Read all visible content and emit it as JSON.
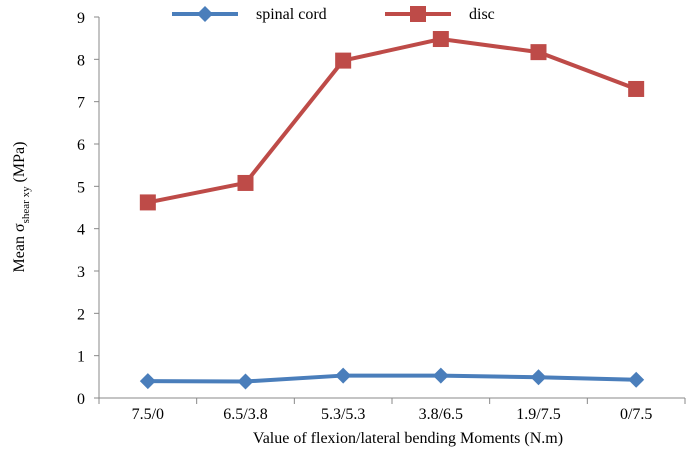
{
  "chart_data": {
    "type": "line",
    "x_label": "Value of flexion/lateral bending Moments (N.m)",
    "y_label": {
      "main": "Mean σ",
      "sub": "shear xy",
      "unit": "(MPa)"
    },
    "categories": [
      "7.5/0",
      "6.5/3.8",
      "5.3/5.3",
      "3.8/6.5",
      "1.9/7.5",
      "0/7.5"
    ],
    "series": [
      {
        "name": "spinal cord",
        "color": "#4a7ebb",
        "marker": "diamond",
        "values": [
          0.4,
          0.39,
          0.53,
          0.53,
          0.49,
          0.43
        ]
      },
      {
        "name": "disc",
        "color": "#be4b48",
        "marker": "square",
        "values": [
          4.62,
          5.08,
          7.97,
          8.48,
          8.17,
          7.3
        ]
      }
    ],
    "ylim": [
      0,
      9
    ],
    "yticks": [
      0,
      1,
      2,
      3,
      4,
      5,
      6,
      7,
      8,
      9
    ],
    "grid": false
  }
}
